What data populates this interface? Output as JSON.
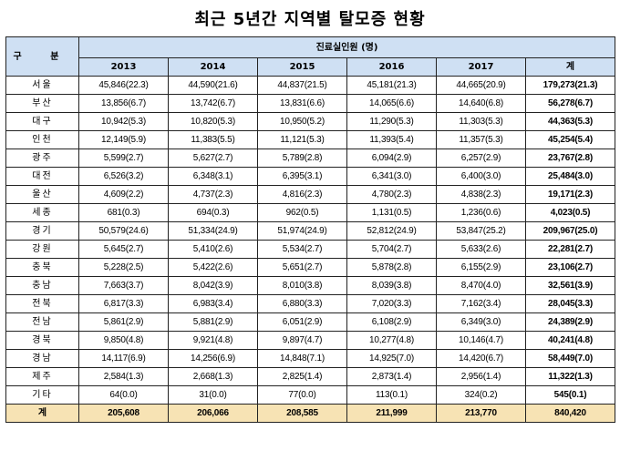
{
  "title": "최근 5년간 지역별 탈모증 현황",
  "header": {
    "category": "구 분",
    "group": "진료실인원 (명)",
    "years": [
      "2013",
      "2014",
      "2015",
      "2016",
      "2017"
    ],
    "total": "계"
  },
  "rows": [
    {
      "region": "서울",
      "v": [
        "45,846(22.3)",
        "44,590(21.6)",
        "44,837(21.5)",
        "45,181(21.3)",
        "44,665(20.9)"
      ],
      "total": "179,273(21.3)"
    },
    {
      "region": "부산",
      "v": [
        "13,856(6.7)",
        "13,742(6.7)",
        "13,831(6.6)",
        "14,065(6.6)",
        "14,640(6.8)"
      ],
      "total": "56,278(6.7)"
    },
    {
      "region": "대구",
      "v": [
        "10,942(5.3)",
        "10,820(5.3)",
        "10,950(5.2)",
        "11,290(5.3)",
        "11,303(5.3)"
      ],
      "total": "44,363(5.3)"
    },
    {
      "region": "인천",
      "v": [
        "12,149(5.9)",
        "11,383(5.5)",
        "11,121(5.3)",
        "11,393(5.4)",
        "11,357(5.3)"
      ],
      "total": "45,254(5.4)"
    },
    {
      "region": "광주",
      "v": [
        "5,599(2.7)",
        "5,627(2.7)",
        "5,789(2.8)",
        "6,094(2.9)",
        "6,257(2.9)"
      ],
      "total": "23,767(2.8)"
    },
    {
      "region": "대전",
      "v": [
        "6,526(3.2)",
        "6,348(3.1)",
        "6,395(3.1)",
        "6,341(3.0)",
        "6,400(3.0)"
      ],
      "total": "25,484(3.0)"
    },
    {
      "region": "울산",
      "v": [
        "4,609(2.2)",
        "4,737(2.3)",
        "4,816(2.3)",
        "4,780(2.3)",
        "4,838(2.3)"
      ],
      "total": "19,171(2.3)"
    },
    {
      "region": "세종",
      "v": [
        "681(0.3)",
        "694(0.3)",
        "962(0.5)",
        "1,131(0.5)",
        "1,236(0.6)"
      ],
      "total": "4,023(0.5)"
    },
    {
      "region": "경기",
      "v": [
        "50,579(24.6)",
        "51,334(24.9)",
        "51,974(24.9)",
        "52,812(24.9)",
        "53,847(25.2)"
      ],
      "total": "209,967(25.0)"
    },
    {
      "region": "강원",
      "v": [
        "5,645(2.7)",
        "5,410(2.6)",
        "5,534(2.7)",
        "5,704(2.7)",
        "5,633(2.6)"
      ],
      "total": "22,281(2.7)"
    },
    {
      "region": "충북",
      "v": [
        "5,228(2.5)",
        "5,422(2.6)",
        "5,651(2.7)",
        "5,878(2.8)",
        "6,155(2.9)"
      ],
      "total": "23,106(2.7)"
    },
    {
      "region": "충남",
      "v": [
        "7,663(3.7)",
        "8,042(3.9)",
        "8,010(3.8)",
        "8,039(3.8)",
        "8,470(4.0)"
      ],
      "total": "32,561(3.9)"
    },
    {
      "region": "전북",
      "v": [
        "6,817(3.3)",
        "6,983(3.4)",
        "6,880(3.3)",
        "7,020(3.3)",
        "7,162(3.4)"
      ],
      "total": "28,045(3.3)"
    },
    {
      "region": "전남",
      "v": [
        "5,861(2.9)",
        "5,881(2.9)",
        "6,051(2.9)",
        "6,108(2.9)",
        "6,349(3.0)"
      ],
      "total": "24,389(2.9)"
    },
    {
      "region": "경북",
      "v": [
        "9,850(4.8)",
        "9,921(4.8)",
        "9,897(4.7)",
        "10,277(4.8)",
        "10,146(4.7)"
      ],
      "total": "40,241(4.8)"
    },
    {
      "region": "경남",
      "v": [
        "14,117(6.9)",
        "14,256(6.9)",
        "14,848(7.1)",
        "14,925(7.0)",
        "14,420(6.7)"
      ],
      "total": "58,449(7.0)"
    },
    {
      "region": "제주",
      "v": [
        "2,584(1.3)",
        "2,668(1.3)",
        "2,825(1.4)",
        "2,873(1.4)",
        "2,956(1.4)"
      ],
      "total": "11,322(1.3)"
    },
    {
      "region": "기타",
      "v": [
        "64(0.0)",
        "31(0.0)",
        "77(0.0)",
        "113(0.1)",
        "324(0.2)"
      ],
      "total": "545(0.1)"
    }
  ],
  "total_row": {
    "label": "계",
    "v": [
      "205,608",
      "206,066",
      "208,585",
      "211,999",
      "213,770"
    ],
    "total": "840,420"
  }
}
